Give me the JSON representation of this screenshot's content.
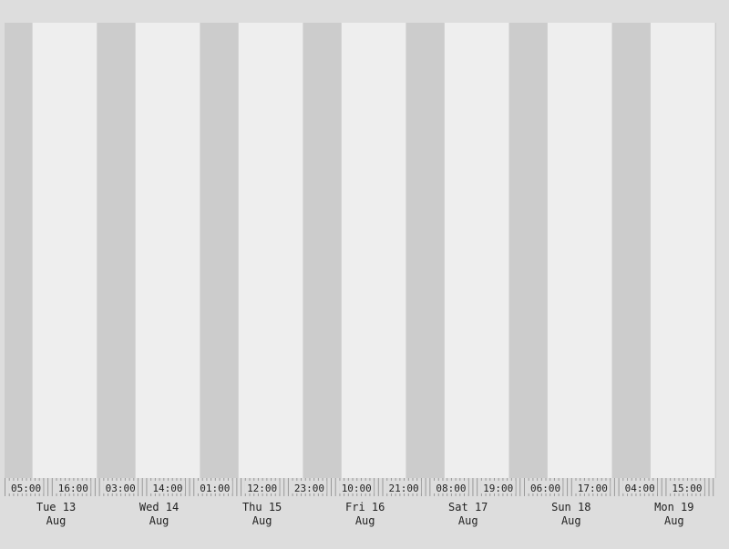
{
  "chart_data": {
    "type": "timeline",
    "title": "",
    "xlabel": "",
    "ylabel": "",
    "colors": {
      "page_background": "#dddddd",
      "daylight": "#eeeeee",
      "night": "#cccccc",
      "tick": "#999999",
      "text": "#222222"
    },
    "x_range_hours": [
      0,
      165.8
    ],
    "period_hours": 24,
    "day_start_hour": 6.5,
    "day_length_hours": 15,
    "hour_ticks": [
      {
        "label": "05:00",
        "hour": 5
      },
      {
        "label": "16:00",
        "hour": 16
      },
      {
        "label": "03:00",
        "hour": 27
      },
      {
        "label": "14:00",
        "hour": 38
      },
      {
        "label": "01:00",
        "hour": 49
      },
      {
        "label": "12:00",
        "hour": 60
      },
      {
        "label": "23:00",
        "hour": 71
      },
      {
        "label": "10:00",
        "hour": 82
      },
      {
        "label": "21:00",
        "hour": 93
      },
      {
        "label": "08:00",
        "hour": 104
      },
      {
        "label": "19:00",
        "hour": 115
      },
      {
        "label": "06:00",
        "hour": 126
      },
      {
        "label": "17:00",
        "hour": 137
      },
      {
        "label": "04:00",
        "hour": 148
      },
      {
        "label": "15:00",
        "hour": 159
      }
    ],
    "days": [
      {
        "weekday": "Tue 13",
        "month": "Aug",
        "hour": 12
      },
      {
        "weekday": "Wed 14",
        "month": "Aug",
        "hour": 36
      },
      {
        "weekday": "Thu 15",
        "month": "Aug",
        "hour": 60
      },
      {
        "weekday": "Fri 16",
        "month": "Aug",
        "hour": 84
      },
      {
        "weekday": "Sat 17",
        "month": "Aug",
        "hour": 108
      },
      {
        "weekday": "Sun 18",
        "month": "Aug",
        "hour": 132
      },
      {
        "weekday": "Mon 19",
        "month": "Aug",
        "hour": 156
      }
    ]
  }
}
